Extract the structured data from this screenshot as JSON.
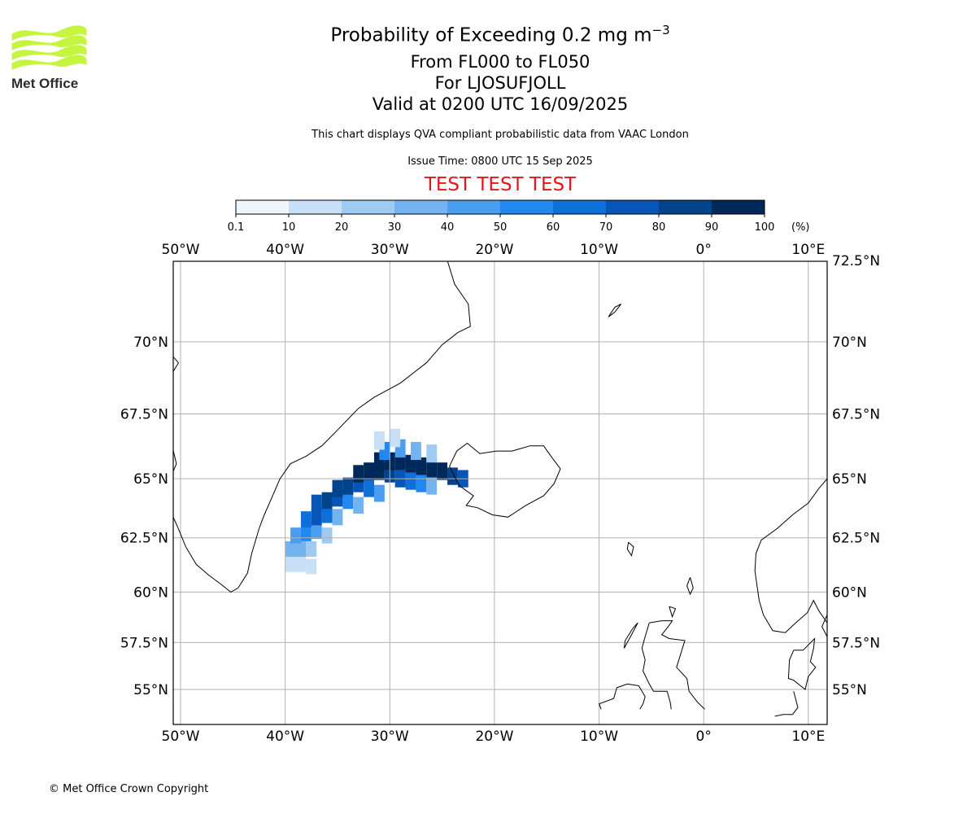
{
  "header": {
    "title_prefix": "Probability of Exceeding 0.2 mg m",
    "title_exponent": "−3",
    "level_line": "From FL000 to FL050",
    "site_line": "For LJOSUFJOLL",
    "valid_line": "Valid at 0200 UTC 16/09/2025",
    "qva_line": "This chart displays QVA compliant probabilistic data from VAAC London",
    "issue_line": "Issue Time: 0800 UTC 15 Sep 2025",
    "test_line": "TEST TEST TEST"
  },
  "logo": {
    "text": "Met Office",
    "color": "#c5f53f",
    "text_color": "#2b2b2b"
  },
  "colorbar": {
    "unit": "(%)",
    "ticks": [
      "0.1",
      "10",
      "20",
      "30",
      "40",
      "50",
      "60",
      "70",
      "80",
      "90",
      "100"
    ],
    "colors": [
      "#eef5fc",
      "#c7e0f7",
      "#9fcbf3",
      "#74b3f0",
      "#4a9ef0",
      "#2288ef",
      "#0f6fd8",
      "#0755b6",
      "#02438d",
      "#002859"
    ]
  },
  "map": {
    "lon_labels": [
      "50°W",
      "40°W",
      "30°W",
      "20°W",
      "10°W",
      "0°",
      "10°E"
    ],
    "lat_labels": [
      "72.5°N",
      "70°N",
      "67.5°N",
      "65°N",
      "62.5°N",
      "60°N",
      "57.5°N",
      "55°N"
    ]
  },
  "chart_data": {
    "type": "heatmap",
    "title": "Probability of Exceeding 0.2 mg m−3",
    "xlabel": "",
    "ylabel": "",
    "xlim": [
      -50.7,
      11.8
    ],
    "ylim": [
      53.9,
      72.5
    ],
    "x_ticks": [
      -50,
      -40,
      -30,
      -20,
      -10,
      0,
      10
    ],
    "y_ticks": [
      72.5,
      70,
      67.5,
      65,
      62.5,
      60,
      57.5,
      55
    ],
    "grid": true,
    "value_unit": "%",
    "bins": [
      0.1,
      10,
      20,
      30,
      40,
      50,
      60,
      70,
      80,
      90,
      100
    ],
    "cells": [
      {
        "lon": -39.5,
        "lat": 61.3,
        "value": 15
      },
      {
        "lon": -38.5,
        "lat": 61.3,
        "value": 15
      },
      {
        "lon": -37.5,
        "lat": 61.2,
        "value": 12
      },
      {
        "lon": -39.5,
        "lat": 62.0,
        "value": 30
      },
      {
        "lon": -38.5,
        "lat": 62.0,
        "value": 35
      },
      {
        "lon": -37.5,
        "lat": 62.0,
        "value": 25
      },
      {
        "lon": -39.0,
        "lat": 62.6,
        "value": 45
      },
      {
        "lon": -38.0,
        "lat": 62.7,
        "value": 55
      },
      {
        "lon": -37.0,
        "lat": 62.8,
        "value": 45
      },
      {
        "lon": -36.0,
        "lat": 62.6,
        "value": 25
      },
      {
        "lon": -38.0,
        "lat": 63.3,
        "value": 65
      },
      {
        "lon": -37.0,
        "lat": 63.4,
        "value": 75
      },
      {
        "lon": -36.0,
        "lat": 63.5,
        "value": 65
      },
      {
        "lon": -35.0,
        "lat": 63.4,
        "value": 35
      },
      {
        "lon": -37.0,
        "lat": 64.0,
        "value": 75
      },
      {
        "lon": -36.0,
        "lat": 64.1,
        "value": 85
      },
      {
        "lon": -35.0,
        "lat": 64.2,
        "value": 75
      },
      {
        "lon": -34.0,
        "lat": 64.1,
        "value": 55
      },
      {
        "lon": -33.0,
        "lat": 63.9,
        "value": 35
      },
      {
        "lon": -35.0,
        "lat": 64.6,
        "value": 85
      },
      {
        "lon": -34.0,
        "lat": 64.7,
        "value": 85
      },
      {
        "lon": -33.0,
        "lat": 64.8,
        "value": 75
      },
      {
        "lon": -32.0,
        "lat": 64.6,
        "value": 65
      },
      {
        "lon": -31.0,
        "lat": 64.4,
        "value": 45
      },
      {
        "lon": -33.0,
        "lat": 65.2,
        "value": 95
      },
      {
        "lon": -32.0,
        "lat": 65.3,
        "value": 95
      },
      {
        "lon": -31.0,
        "lat": 65.3,
        "value": 95
      },
      {
        "lon": -30.0,
        "lat": 65.2,
        "value": 85
      },
      {
        "lon": -29.0,
        "lat": 65.0,
        "value": 75
      },
      {
        "lon": -28.0,
        "lat": 64.9,
        "value": 65
      },
      {
        "lon": -27.0,
        "lat": 64.8,
        "value": 55
      },
      {
        "lon": -26.0,
        "lat": 64.7,
        "value": 35
      },
      {
        "lon": -31.0,
        "lat": 65.7,
        "value": 95
      },
      {
        "lon": -30.0,
        "lat": 65.7,
        "value": 95
      },
      {
        "lon": -29.0,
        "lat": 65.7,
        "value": 95
      },
      {
        "lon": -28.0,
        "lat": 65.6,
        "value": 95
      },
      {
        "lon": -27.0,
        "lat": 65.5,
        "value": 95
      },
      {
        "lon": -26.0,
        "lat": 65.4,
        "value": 95
      },
      {
        "lon": -25.0,
        "lat": 65.3,
        "value": 95
      },
      {
        "lon": -24.0,
        "lat": 65.1,
        "value": 85
      },
      {
        "lon": -23.0,
        "lat": 65.0,
        "value": 75
      },
      {
        "lon": -30.5,
        "lat": 66.1,
        "value": 55
      },
      {
        "lon": -29.0,
        "lat": 66.2,
        "value": 45
      },
      {
        "lon": -27.5,
        "lat": 66.1,
        "value": 35
      },
      {
        "lon": -26.0,
        "lat": 66.0,
        "value": 25
      },
      {
        "lon": -31.0,
        "lat": 66.5,
        "value": 15
      },
      {
        "lon": -29.5,
        "lat": 66.6,
        "value": 12
      }
    ]
  }
}
